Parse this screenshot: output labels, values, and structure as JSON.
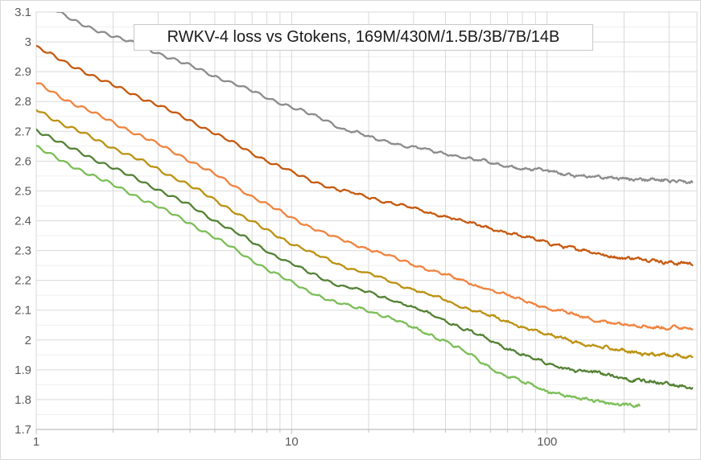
{
  "chart_data": {
    "type": "line",
    "title": "RWKV-4 loss vs Gtokens, 169M/430M/1.5B/3B/7B/14B",
    "xlabel": "",
    "ylabel": "",
    "x_scale": "log10",
    "x_range": [
      1,
      386
    ],
    "y_range": [
      1.7,
      3.1
    ],
    "grid": true,
    "legend_position": "none",
    "x_tick_labels": [
      {
        "v": 1,
        "label": "1"
      },
      {
        "v": 10,
        "label": "10"
      },
      {
        "v": 100,
        "label": "100"
      }
    ],
    "y_tick_labels": [
      {
        "v": 3.1,
        "label": "3.1"
      },
      {
        "v": 3.0,
        "label": "3"
      },
      {
        "v": 2.9,
        "label": "2.9"
      },
      {
        "v": 2.8,
        "label": "2.8"
      },
      {
        "v": 2.7,
        "label": "2.7"
      },
      {
        "v": 2.6,
        "label": "2.6"
      },
      {
        "v": 2.5,
        "label": "2.5"
      },
      {
        "v": 2.4,
        "label": "2.4"
      },
      {
        "v": 2.3,
        "label": "2.3"
      },
      {
        "v": 2.2,
        "label": "2.2"
      },
      {
        "v": 2.1,
        "label": "2.1"
      },
      {
        "v": 2.0,
        "label": "2"
      },
      {
        "v": 1.9,
        "label": "1.9"
      },
      {
        "v": 1.8,
        "label": "1.8"
      },
      {
        "v": 1.7,
        "label": "1.7"
      }
    ],
    "series": [
      {
        "name": "169M",
        "color": "#8C8C8C",
        "points": [
          [
            1,
            3.19
          ],
          [
            1.2,
            3.105
          ],
          [
            1.4,
            3.07
          ],
          [
            1.6,
            3.05
          ],
          [
            2,
            3.02
          ],
          [
            2.5,
            2.99
          ],
          [
            3,
            2.963
          ],
          [
            4,
            2.92
          ],
          [
            5,
            2.886
          ],
          [
            6,
            2.858
          ],
          [
            7,
            2.834
          ],
          [
            8,
            2.814
          ],
          [
            10,
            2.782
          ],
          [
            12,
            2.755
          ],
          [
            14,
            2.733
          ],
          [
            15.5,
            2.71
          ],
          [
            18,
            2.695
          ],
          [
            21,
            2.675
          ],
          [
            25,
            2.661
          ],
          [
            30,
            2.646
          ],
          [
            40,
            2.625
          ],
          [
            50,
            2.608
          ],
          [
            65,
            2.589
          ],
          [
            80,
            2.576
          ],
          [
            100,
            2.565
          ],
          [
            130,
            2.553
          ],
          [
            166,
            2.545
          ],
          [
            200,
            2.541
          ],
          [
            250,
            2.537
          ],
          [
            300,
            2.534
          ],
          [
            370,
            2.531
          ]
        ]
      },
      {
        "name": "430M",
        "color": "#C55A11",
        "points": [
          [
            1,
            2.985
          ],
          [
            1.3,
            2.93
          ],
          [
            1.5,
            2.906
          ],
          [
            2,
            2.854
          ],
          [
            2.5,
            2.818
          ],
          [
            3,
            2.788
          ],
          [
            4,
            2.736
          ],
          [
            5,
            2.694
          ],
          [
            6,
            2.658
          ],
          [
            7,
            2.627
          ],
          [
            8,
            2.602
          ],
          [
            10,
            2.563
          ],
          [
            12,
            2.534
          ],
          [
            15,
            2.505
          ],
          [
            20,
            2.48
          ],
          [
            25,
            2.458
          ],
          [
            30,
            2.441
          ],
          [
            40,
            2.414
          ],
          [
            50,
            2.392
          ],
          [
            65,
            2.366
          ],
          [
            80,
            2.347
          ],
          [
            100,
            2.328
          ],
          [
            130,
            2.305
          ],
          [
            166,
            2.286
          ],
          [
            200,
            2.276
          ],
          [
            250,
            2.268
          ],
          [
            300,
            2.262
          ],
          [
            370,
            2.257
          ]
        ]
      },
      {
        "name": "1.5B",
        "color": "#EF8440",
        "points": [
          [
            1,
            2.862
          ],
          [
            1.3,
            2.807
          ],
          [
            1.5,
            2.782
          ],
          [
            2,
            2.729
          ],
          [
            2.5,
            2.69
          ],
          [
            3,
            2.657
          ],
          [
            4,
            2.602
          ],
          [
            5,
            2.556
          ],
          [
            6,
            2.516
          ],
          [
            7,
            2.482
          ],
          [
            8,
            2.454
          ],
          [
            10,
            2.41
          ],
          [
            12,
            2.377
          ],
          [
            15,
            2.341
          ],
          [
            20,
            2.306
          ],
          [
            25,
            2.277
          ],
          [
            30,
            2.254
          ],
          [
            40,
            2.218
          ],
          [
            50,
            2.19
          ],
          [
            65,
            2.158
          ],
          [
            80,
            2.133
          ],
          [
            100,
            2.108
          ],
          [
            130,
            2.083
          ],
          [
            166,
            2.063
          ],
          [
            200,
            2.052
          ],
          [
            250,
            2.046
          ],
          [
            300,
            2.042
          ],
          [
            370,
            2.039
          ]
        ]
      },
      {
        "name": "3B",
        "color": "#BC9212",
        "points": [
          [
            1,
            2.774
          ],
          [
            1.3,
            2.72
          ],
          [
            1.5,
            2.696
          ],
          [
            2,
            2.645
          ],
          [
            2.5,
            2.606
          ],
          [
            3,
            2.573
          ],
          [
            4,
            2.518
          ],
          [
            5,
            2.47
          ],
          [
            6,
            2.43
          ],
          [
            7,
            2.396
          ],
          [
            8,
            2.368
          ],
          [
            10,
            2.324
          ],
          [
            12,
            2.292
          ],
          [
            15,
            2.256
          ],
          [
            20,
            2.222
          ],
          [
            25,
            2.193
          ],
          [
            30,
            2.17
          ],
          [
            40,
            2.133
          ],
          [
            50,
            2.104
          ],
          [
            65,
            2.07
          ],
          [
            80,
            2.044
          ],
          [
            100,
            2.018
          ],
          [
            130,
            1.993
          ],
          [
            166,
            1.975
          ],
          [
            200,
            1.963
          ],
          [
            250,
            1.953
          ],
          [
            300,
            1.947
          ],
          [
            370,
            1.942
          ]
        ]
      },
      {
        "name": "7B",
        "color": "#548235",
        "points": [
          [
            1,
            2.706
          ],
          [
            1.3,
            2.652
          ],
          [
            1.5,
            2.628
          ],
          [
            2,
            2.577
          ],
          [
            2.5,
            2.538
          ],
          [
            3,
            2.505
          ],
          [
            4,
            2.45
          ],
          [
            5,
            2.402
          ],
          [
            6,
            2.362
          ],
          [
            7,
            2.328
          ],
          [
            8,
            2.299
          ],
          [
            10,
            2.255
          ],
          [
            12,
            2.222
          ],
          [
            15,
            2.186
          ],
          [
            20,
            2.16
          ],
          [
            25,
            2.133
          ],
          [
            30,
            2.108
          ],
          [
            40,
            2.066
          ],
          [
            50,
            2.028
          ],
          [
            65,
            1.985
          ],
          [
            80,
            1.952
          ],
          [
            100,
            1.92
          ],
          [
            130,
            1.898
          ],
          [
            166,
            1.885
          ],
          [
            200,
            1.873
          ],
          [
            250,
            1.86
          ],
          [
            300,
            1.851
          ],
          [
            370,
            1.843
          ]
        ]
      },
      {
        "name": "14B",
        "color": "#7CBE58",
        "points": [
          [
            1,
            2.648
          ],
          [
            1.3,
            2.594
          ],
          [
            1.5,
            2.57
          ],
          [
            2,
            2.52
          ],
          [
            2.5,
            2.48
          ],
          [
            3,
            2.447
          ],
          [
            4,
            2.392
          ],
          [
            5,
            2.344
          ],
          [
            6,
            2.304
          ],
          [
            7,
            2.268
          ],
          [
            8,
            2.238
          ],
          [
            10,
            2.193
          ],
          [
            12,
            2.159
          ],
          [
            15,
            2.124
          ],
          [
            20,
            2.1
          ],
          [
            25,
            2.07
          ],
          [
            30,
            2.042
          ],
          [
            40,
            1.996
          ],
          [
            50,
            1.95
          ],
          [
            65,
            1.89
          ],
          [
            80,
            1.86
          ],
          [
            100,
            1.83
          ],
          [
            130,
            1.805
          ],
          [
            166,
            1.792
          ],
          [
            200,
            1.783
          ],
          [
            230,
            1.778
          ]
        ]
      }
    ]
  },
  "colors": {
    "grid_major": "#D9D9D9",
    "grid_minor": "#EFEFEF",
    "axis_line": "#BFBFBF",
    "tick_text": "#595959",
    "title_text": "#1A1A1A",
    "title_border": "#C8C8C8",
    "background": "#FFFFFF"
  }
}
